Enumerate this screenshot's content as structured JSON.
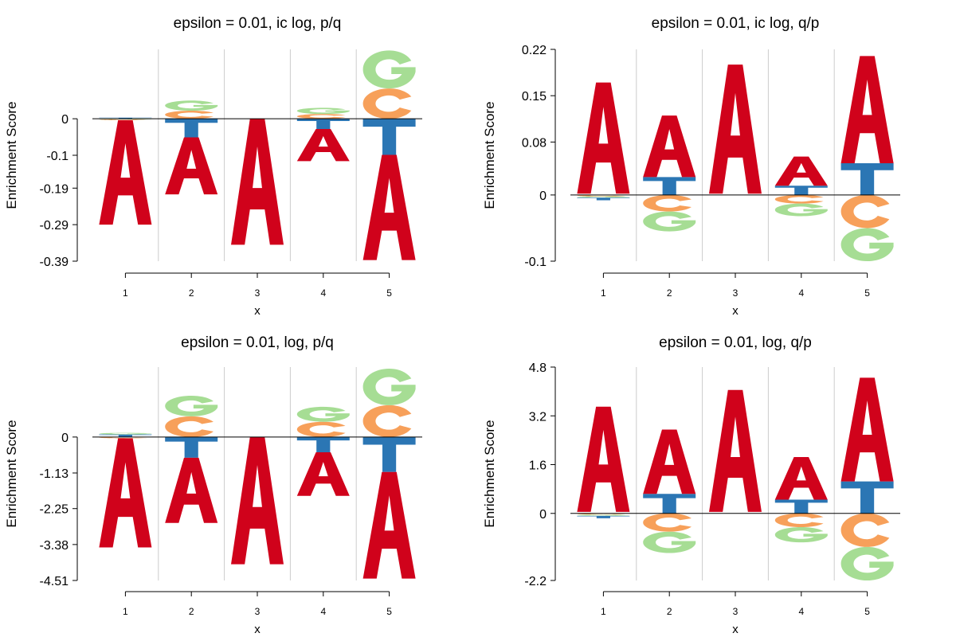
{
  "colors": {
    "A": "#d0021b",
    "C": "#f7a05a",
    "G": "#a6dd94",
    "T": "#2b76b4",
    "axis": "#000000",
    "gridline": "#cccccc"
  },
  "chart_data": [
    {
      "type": "sequence-logo",
      "title": "epsilon = 0.01, ic log, p/q",
      "xlabel": "x",
      "ylabel": "Enrichment Score",
      "xticks": [
        "1",
        "2",
        "3",
        "4",
        "5"
      ],
      "yticks": [
        0,
        -0.1,
        -0.19,
        -0.29,
        -0.39
      ],
      "ytick_labels": [
        "0",
        "-0.1",
        "-0.19",
        "-0.29",
        "-0.39"
      ],
      "ylim": [
        -0.39,
        0.19
      ],
      "grid": "vertical separators",
      "positions": [
        {
          "x": "1",
          "stack": [
            {
              "letter": "T",
              "from": 0,
              "to": 0.003
            },
            {
              "letter": "G",
              "from": 0,
              "to": -0.002
            },
            {
              "letter": "C",
              "from": -0.002,
              "to": -0.004
            },
            {
              "letter": "A",
              "from": -0.004,
              "to": -0.29
            }
          ]
        },
        {
          "x": "2",
          "stack": [
            {
              "letter": "C",
              "from": 0,
              "to": 0.022
            },
            {
              "letter": "G",
              "from": 0.022,
              "to": 0.05
            },
            {
              "letter": "T",
              "from": 0,
              "to": -0.051
            },
            {
              "letter": "A",
              "from": -0.051,
              "to": -0.207
            }
          ]
        },
        {
          "x": "3",
          "stack": [
            {
              "letter": "A",
              "from": 0,
              "to": -0.345
            }
          ]
        },
        {
          "x": "4",
          "stack": [
            {
              "letter": "C",
              "from": 0,
              "to": 0.013
            },
            {
              "letter": "G",
              "from": 0.013,
              "to": 0.03
            },
            {
              "letter": "T",
              "from": 0,
              "to": -0.028
            },
            {
              "letter": "A",
              "from": -0.028,
              "to": -0.116
            }
          ]
        },
        {
          "x": "5",
          "stack": [
            {
              "letter": "C",
              "from": 0,
              "to": 0.083
            },
            {
              "letter": "G",
              "from": 0.083,
              "to": 0.187
            },
            {
              "letter": "T",
              "from": 0,
              "to": -0.099
            },
            {
              "letter": "A",
              "from": -0.099,
              "to": -0.387
            }
          ]
        }
      ]
    },
    {
      "type": "sequence-logo",
      "title": "epsilon = 0.01, ic log, q/p",
      "xlabel": "x",
      "ylabel": "Enrichment Score",
      "xticks": [
        "1",
        "2",
        "3",
        "4",
        "5"
      ],
      "yticks": [
        0.22,
        0.15,
        0.08,
        0,
        -0.1
      ],
      "ytick_labels": [
        "0.22",
        "0.15",
        "0.08",
        "0",
        "-0.1"
      ],
      "ylim": [
        -0.1,
        0.22
      ],
      "grid": "vertical separators",
      "positions": [
        {
          "x": "1",
          "stack": [
            {
              "letter": "A",
              "from": 0.002,
              "to": 0.17
            },
            {
              "letter": "C",
              "from": 0,
              "to": -0.002
            },
            {
              "letter": "G",
              "from": -0.002,
              "to": -0.004
            },
            {
              "letter": "T",
              "from": -0.004,
              "to": -0.008
            }
          ]
        },
        {
          "x": "2",
          "stack": [
            {
              "letter": "T",
              "from": 0,
              "to": 0.027
            },
            {
              "letter": "A",
              "from": 0.027,
              "to": 0.12
            },
            {
              "letter": "C",
              "from": 0,
              "to": -0.025
            },
            {
              "letter": "G",
              "from": -0.025,
              "to": -0.055
            }
          ]
        },
        {
          "x": "3",
          "stack": [
            {
              "letter": "A",
              "from": 0.002,
              "to": 0.197
            }
          ]
        },
        {
          "x": "4",
          "stack": [
            {
              "letter": "T",
              "from": 0,
              "to": 0.014
            },
            {
              "letter": "A",
              "from": 0.014,
              "to": 0.058
            },
            {
              "letter": "C",
              "from": 0,
              "to": -0.013
            },
            {
              "letter": "G",
              "from": -0.013,
              "to": -0.032
            }
          ]
        },
        {
          "x": "5",
          "stack": [
            {
              "letter": "T",
              "from": 0,
              "to": 0.048
            },
            {
              "letter": "A",
              "from": 0.048,
              "to": 0.21
            },
            {
              "letter": "C",
              "from": 0,
              "to": -0.05
            },
            {
              "letter": "G",
              "from": -0.05,
              "to": -0.1
            }
          ]
        }
      ]
    },
    {
      "type": "sequence-logo",
      "title": "epsilon = 0.01, log, p/q",
      "xlabel": "x",
      "ylabel": "Enrichment Score",
      "xticks": [
        "1",
        "2",
        "3",
        "4",
        "5"
      ],
      "yticks": [
        0,
        -1.13,
        -2.25,
        -3.38,
        -4.51
      ],
      "ytick_labels": [
        "0",
        "-1.13",
        "-2.25",
        "-3.38",
        "-4.51"
      ],
      "ylim": [
        -4.51,
        2.2
      ],
      "grid": "vertical separators",
      "positions": [
        {
          "x": "1",
          "stack": [
            {
              "letter": "T",
              "from": 0,
              "to": 0.08
            },
            {
              "letter": "G",
              "from": 0.08,
              "to": 0.13
            },
            {
              "letter": "C",
              "from": 0,
              "to": -0.04
            },
            {
              "letter": "A",
              "from": -0.04,
              "to": -3.47
            }
          ]
        },
        {
          "x": "2",
          "stack": [
            {
              "letter": "C",
              "from": 0,
              "to": 0.65
            },
            {
              "letter": "G",
              "from": 0.65,
              "to": 1.3
            },
            {
              "letter": "T",
              "from": 0,
              "to": -0.65
            },
            {
              "letter": "A",
              "from": -0.65,
              "to": -2.7
            }
          ]
        },
        {
          "x": "3",
          "stack": [
            {
              "letter": "A",
              "from": 0,
              "to": -4.0
            }
          ]
        },
        {
          "x": "4",
          "stack": [
            {
              "letter": "C",
              "from": 0,
              "to": 0.48
            },
            {
              "letter": "G",
              "from": 0.48,
              "to": 0.95
            },
            {
              "letter": "T",
              "from": 0,
              "to": -0.48
            },
            {
              "letter": "A",
              "from": -0.48,
              "to": -1.85
            }
          ]
        },
        {
          "x": "5",
          "stack": [
            {
              "letter": "C",
              "from": 0,
              "to": 1.0
            },
            {
              "letter": "G",
              "from": 1.0,
              "to": 2.15
            },
            {
              "letter": "T",
              "from": 0,
              "to": -1.1
            },
            {
              "letter": "A",
              "from": -1.1,
              "to": -4.45
            }
          ]
        }
      ]
    },
    {
      "type": "sequence-logo",
      "title": "epsilon = 0.01, log, q/p",
      "xlabel": "x",
      "ylabel": "Enrichment Score",
      "xticks": [
        "1",
        "2",
        "3",
        "4",
        "5"
      ],
      "yticks": [
        4.8,
        3.2,
        1.6,
        0,
        -2.2
      ],
      "ytick_labels": [
        "4.8",
        "3.2",
        "1.6",
        "0",
        "-2.2"
      ],
      "ylim": [
        -2.2,
        4.8
      ],
      "grid": "vertical separators",
      "positions": [
        {
          "x": "1",
          "stack": [
            {
              "letter": "A",
              "from": 0.05,
              "to": 3.5
            },
            {
              "letter": "C",
              "from": 0,
              "to": -0.04
            },
            {
              "letter": "G",
              "from": -0.04,
              "to": -0.08
            },
            {
              "letter": "T",
              "from": -0.08,
              "to": -0.16
            }
          ]
        },
        {
          "x": "2",
          "stack": [
            {
              "letter": "T",
              "from": 0,
              "to": 0.64
            },
            {
              "letter": "A",
              "from": 0.64,
              "to": 2.75
            },
            {
              "letter": "C",
              "from": 0,
              "to": -0.6
            },
            {
              "letter": "G",
              "from": -0.6,
              "to": -1.3
            }
          ]
        },
        {
          "x": "3",
          "stack": [
            {
              "letter": "A",
              "from": 0.05,
              "to": 4.05
            }
          ]
        },
        {
          "x": "4",
          "stack": [
            {
              "letter": "T",
              "from": 0,
              "to": 0.45
            },
            {
              "letter": "A",
              "from": 0.45,
              "to": 1.85
            },
            {
              "letter": "C",
              "from": 0,
              "to": -0.45
            },
            {
              "letter": "G",
              "from": -0.45,
              "to": -0.95
            }
          ]
        },
        {
          "x": "5",
          "stack": [
            {
              "letter": "T",
              "from": 0,
              "to": 1.05
            },
            {
              "letter": "A",
              "from": 1.05,
              "to": 4.45
            },
            {
              "letter": "C",
              "from": 0,
              "to": -1.1
            },
            {
              "letter": "G",
              "from": -1.1,
              "to": -2.2
            }
          ]
        }
      ]
    }
  ]
}
